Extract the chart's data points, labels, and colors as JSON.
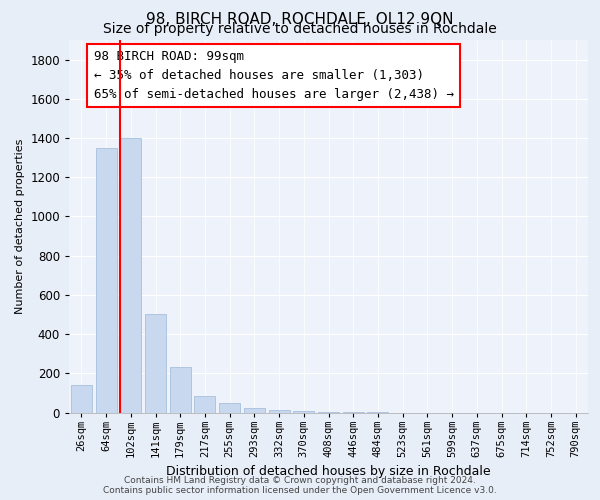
{
  "title": "98, BIRCH ROAD, ROCHDALE, OL12 9QN",
  "subtitle": "Size of property relative to detached houses in Rochdale",
  "xlabel": "Distribution of detached houses by size in Rochdale",
  "ylabel": "Number of detached properties",
  "footer_line1": "Contains HM Land Registry data © Crown copyright and database right 2024.",
  "footer_line2": "Contains public sector information licensed under the Open Government Licence v3.0.",
  "annotation_title": "98 BIRCH ROAD: 99sqm",
  "annotation_line1": "← 35% of detached houses are smaller (1,303)",
  "annotation_line2": "65% of semi-detached houses are larger (2,438) →",
  "bar_color": "#c8d8ee",
  "bar_edge_color": "#a8c0dd",
  "highlight_line_color": "red",
  "highlight_bar_index": 2,
  "categories": [
    "26sqm",
    "64sqm",
    "102sqm",
    "141sqm",
    "179sqm",
    "217sqm",
    "255sqm",
    "293sqm",
    "332sqm",
    "370sqm",
    "408sqm",
    "446sqm",
    "484sqm",
    "523sqm",
    "561sqm",
    "599sqm",
    "637sqm",
    "675sqm",
    "714sqm",
    "752sqm",
    "790sqm"
  ],
  "values": [
    140,
    1350,
    1400,
    500,
    230,
    85,
    50,
    25,
    15,
    10,
    5,
    3,
    2,
    0,
    0,
    0,
    0,
    0,
    0,
    0,
    0
  ],
  "ylim": [
    0,
    1900
  ],
  "yticks": [
    0,
    200,
    400,
    600,
    800,
    1000,
    1200,
    1400,
    1600,
    1800
  ],
  "background_color": "#e8eef8",
  "plot_background": "#eef3fb",
  "grid_color": "#ffffff",
  "title_fontsize": 11,
  "subtitle_fontsize": 10,
  "annotation_fontsize": 9,
  "tick_label_fontsize": 7.5,
  "ylabel_fontsize": 8,
  "xlabel_fontsize": 9
}
